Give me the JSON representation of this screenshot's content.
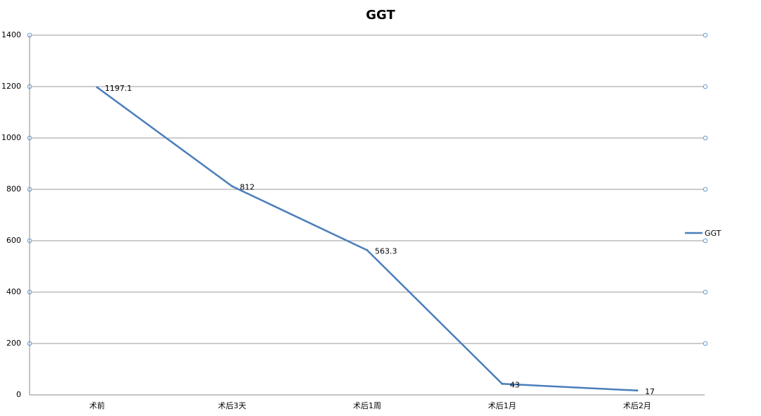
{
  "chart_data": {
    "type": "line",
    "title": "GGT",
    "categories": [
      "术前",
      "术后3天",
      "术后1周",
      "术后1月",
      "术后2月"
    ],
    "series": [
      {
        "name": "GGT",
        "color": "#4a7ebb",
        "values": [
          1197.1,
          812,
          563.3,
          43,
          17
        ]
      }
    ],
    "ylim": [
      0,
      1400
    ],
    "yticks": [
      0,
      200,
      400,
      600,
      800,
      1000,
      1200,
      1400
    ],
    "grid": true,
    "legend": "right",
    "data_labels": true
  }
}
